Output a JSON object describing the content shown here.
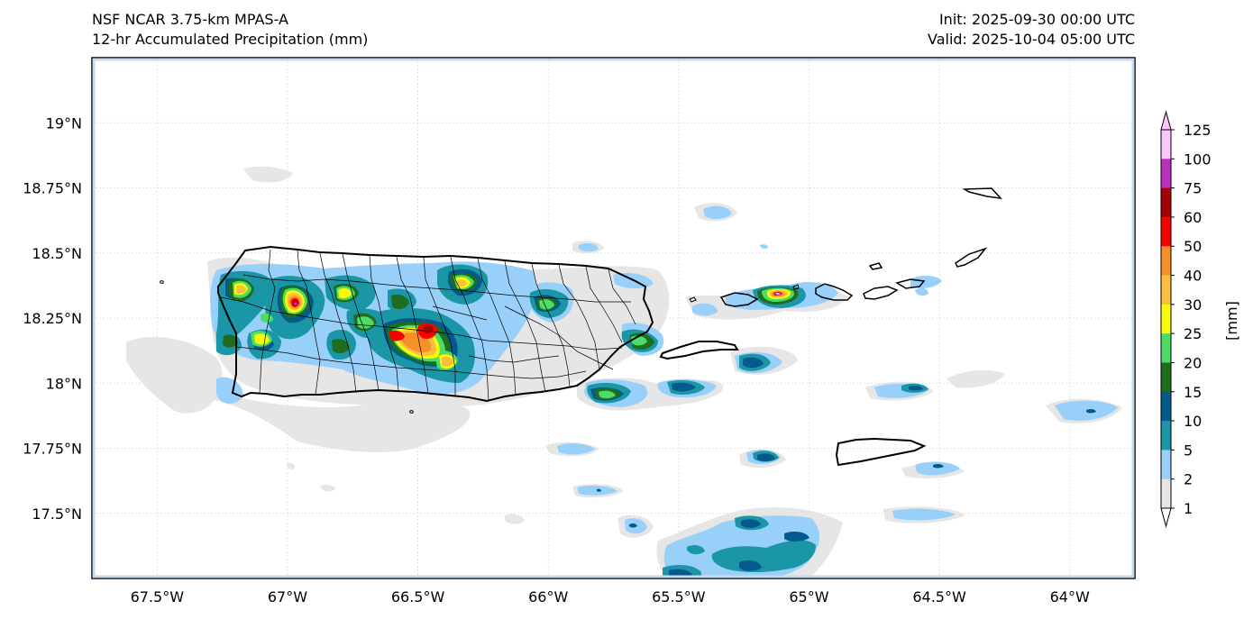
{
  "header": {
    "title_line1": "NSF NCAR 3.75-km MPAS-A",
    "title_line2": "12-hr Accumulated Precipitation (mm)",
    "init": "Init: 2025-09-30 00:00 UTC",
    "valid": "Valid: 2025-10-04 05:00 UTC"
  },
  "map": {
    "lon_ticks": [
      "67.5°W",
      "67°W",
      "66.5°W",
      "66°W",
      "65.5°W",
      "65°W",
      "64.5°W",
      "64°W"
    ],
    "lat_ticks": [
      "19°N",
      "18.75°N",
      "18.5°N",
      "18.25°N",
      "18°N",
      "17.75°N",
      "17.5°N"
    ],
    "lon_values": [
      -67.5,
      -67.0,
      -66.5,
      -66.0,
      -65.5,
      -65.0,
      -64.5,
      -64.0
    ],
    "lat_values": [
      19.0,
      18.75,
      18.5,
      18.25,
      18.0,
      17.75,
      17.5
    ],
    "extent": {
      "lon_min": -67.75,
      "lon_max": -63.75,
      "lat_min": 17.25,
      "lat_max": 19.25
    }
  },
  "colorbar": {
    "unit_label": "[mm]",
    "levels": [
      "1",
      "2",
      "5",
      "10",
      "15",
      "20",
      "25",
      "30",
      "40",
      "50",
      "60",
      "75",
      "100",
      "125"
    ],
    "colors": [
      "#e6e6e6",
      "#99d0fa",
      "#1a96a6",
      "#045a8d",
      "#1f6e1f",
      "#4ddd66",
      "#fbfa07",
      "#fbbf3d",
      "#f79028",
      "#fc0000",
      "#a60000",
      "#bb2fbd",
      "#fdc6fb"
    ]
  }
}
